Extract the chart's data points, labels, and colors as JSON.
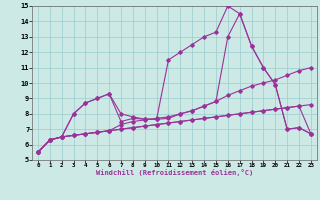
{
  "xlabel": "Windchill (Refroidissement éolien,°C)",
  "xlim": [
    -0.5,
    23.5
  ],
  "ylim": [
    5,
    15
  ],
  "xticks": [
    0,
    1,
    2,
    3,
    4,
    5,
    6,
    7,
    8,
    9,
    10,
    11,
    12,
    13,
    14,
    15,
    16,
    17,
    18,
    19,
    20,
    21,
    22,
    23
  ],
  "yticks": [
    5,
    6,
    7,
    8,
    9,
    10,
    11,
    12,
    13,
    14,
    15
  ],
  "background_color": "#cce9e5",
  "grid_color": "#99cccc",
  "line_color": "#993399",
  "lines": [
    [
      5.5,
      6.3,
      6.5,
      6.6,
      6.7,
      6.8,
      6.9,
      7.0,
      7.1,
      7.2,
      7.3,
      7.4,
      7.5,
      7.6,
      7.7,
      7.8,
      7.9,
      8.0,
      8.1,
      8.2,
      8.3,
      8.4,
      8.5,
      8.6
    ],
    [
      5.5,
      6.3,
      6.5,
      6.6,
      6.7,
      6.8,
      6.9,
      7.3,
      7.5,
      7.6,
      7.7,
      7.8,
      8.0,
      8.2,
      8.5,
      8.8,
      9.2,
      9.5,
      9.8,
      10.0,
      10.2,
      10.5,
      10.8,
      11.0
    ],
    [
      5.5,
      6.3,
      6.5,
      8.0,
      8.7,
      9.0,
      9.3,
      8.0,
      7.8,
      7.65,
      7.65,
      11.5,
      12.0,
      12.5,
      13.0,
      13.3,
      15.0,
      14.5,
      12.4,
      11.0,
      9.9,
      7.0,
      7.1,
      6.7
    ],
    [
      5.5,
      6.3,
      6.5,
      8.0,
      8.7,
      9.0,
      9.3,
      7.5,
      7.7,
      7.65,
      7.65,
      7.7,
      8.0,
      8.2,
      8.5,
      8.8,
      13.0,
      14.5,
      12.4,
      11.0,
      9.9,
      7.0,
      7.1,
      6.7
    ],
    [
      5.5,
      6.3,
      6.5,
      6.6,
      6.7,
      6.8,
      6.9,
      7.0,
      7.1,
      7.2,
      7.3,
      7.4,
      7.5,
      7.6,
      7.7,
      7.8,
      7.9,
      8.0,
      8.1,
      8.2,
      8.3,
      8.4,
      8.5,
      6.7
    ]
  ]
}
